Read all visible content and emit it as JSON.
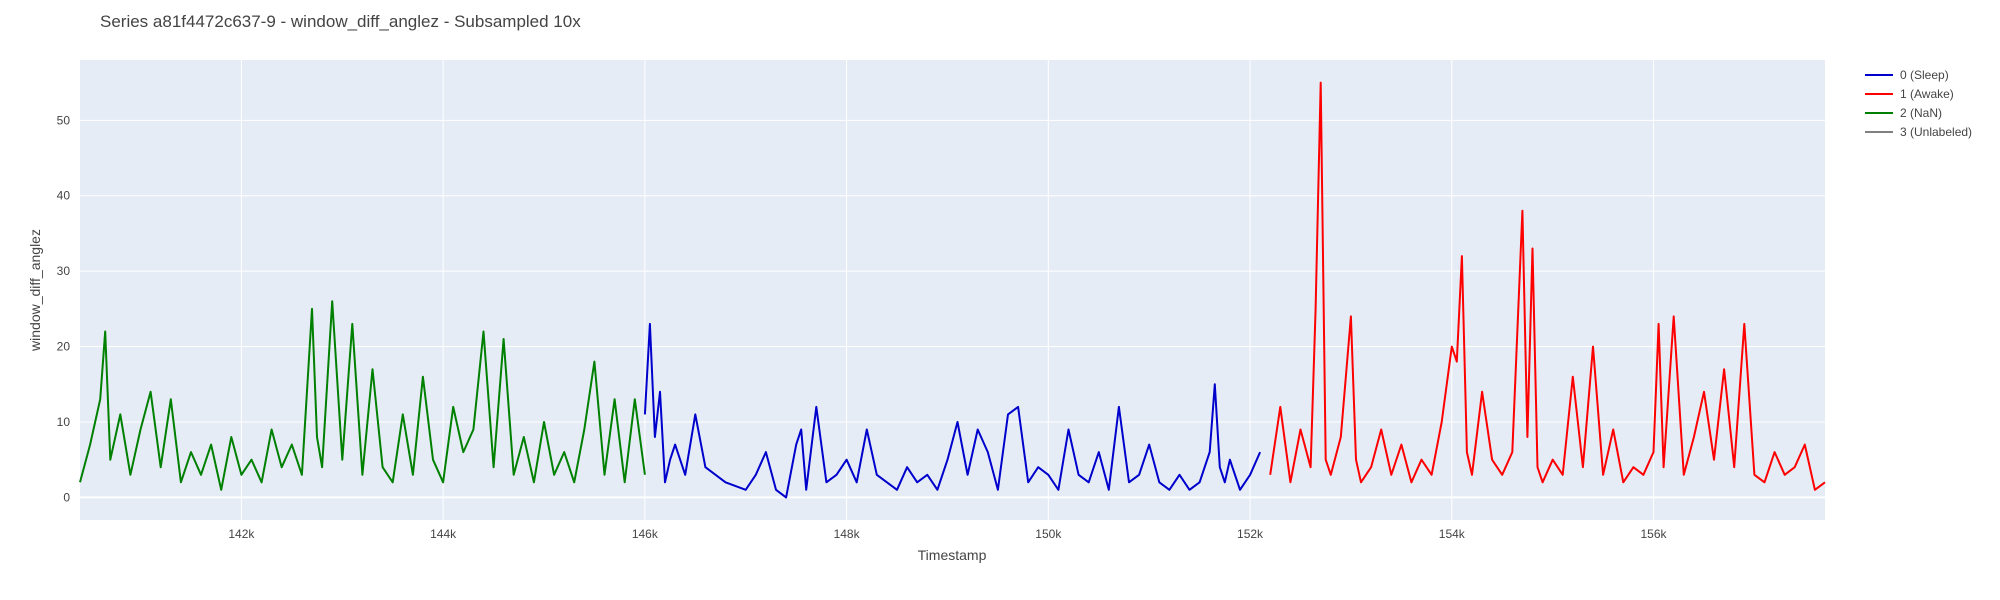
{
  "chart_data": {
    "type": "line",
    "title": "Series a81f4472c637-9 - window_diff_anglez - Subsampled 10x",
    "xlabel": "Timestamp",
    "ylabel": "window_diff_anglez",
    "xlim": [
      140400,
      157700
    ],
    "ylim": [
      -3,
      58
    ],
    "x_ticks": [
      142000,
      144000,
      146000,
      148000,
      150000,
      152000,
      154000,
      156000
    ],
    "x_tick_labels": [
      "142k",
      "144k",
      "146k",
      "148k",
      "150k",
      "152k",
      "154k",
      "156k"
    ],
    "y_ticks": [
      0,
      10,
      20,
      30,
      40,
      50
    ],
    "y_tick_labels": [
      "0",
      "10",
      "20",
      "30",
      "40",
      "50"
    ],
    "grid": true,
    "legend_position": "top-right",
    "colors": {
      "plot_bg": "#e5ecf6",
      "grid": "#ffffff"
    },
    "series": [
      {
        "name": "0 (Sleep)",
        "color": "#0000cc",
        "x": [
          146000,
          146050,
          146100,
          146150,
          146200,
          146250,
          146300,
          146400,
          146500,
          146600,
          146800,
          147000,
          147100,
          147200,
          147300,
          147400,
          147500,
          147550,
          147600,
          147700,
          147800,
          147900,
          148000,
          148100,
          148200,
          148300,
          148400,
          148500,
          148600,
          148700,
          148800,
          148900,
          149000,
          149100,
          149200,
          149300,
          149400,
          149500,
          149600,
          149700,
          149800,
          149900,
          150000,
          150100,
          150200,
          150300,
          150400,
          150500,
          150600,
          150700,
          150800,
          150900,
          151000,
          151100,
          151200,
          151300,
          151400,
          151500,
          151600,
          151650,
          151700,
          151750,
          151800,
          151900,
          152000,
          152100
        ],
        "y": [
          11,
          23,
          8,
          14,
          2,
          5,
          7,
          3,
          11,
          4,
          2,
          1,
          3,
          6,
          1,
          0,
          7,
          9,
          1,
          12,
          2,
          3,
          5,
          2,
          9,
          3,
          2,
          1,
          4,
          2,
          3,
          1,
          5,
          10,
          3,
          9,
          6,
          1,
          11,
          12,
          2,
          4,
          3,
          1,
          9,
          3,
          2,
          6,
          1,
          12,
          2,
          3,
          7,
          2,
          1,
          3,
          1,
          2,
          6,
          15,
          4,
          2,
          5,
          1,
          3,
          6
        ]
      },
      {
        "name": "1 (Awake)",
        "color": "#ff0000",
        "x": [
          152200,
          152300,
          152400,
          152500,
          152600,
          152650,
          152700,
          152750,
          152800,
          152900,
          153000,
          153050,
          153100,
          153200,
          153300,
          153400,
          153500,
          153600,
          153700,
          153800,
          153900,
          154000,
          154050,
          154100,
          154150,
          154200,
          154300,
          154400,
          154500,
          154600,
          154700,
          154750,
          154800,
          154850,
          154900,
          155000,
          155100,
          155200,
          155300,
          155400,
          155500,
          155600,
          155700,
          155800,
          155900,
          156000,
          156050,
          156100,
          156200,
          156300,
          156400,
          156500,
          156600,
          156700,
          156800,
          156900,
          157000,
          157100,
          157200,
          157300,
          157400,
          157500,
          157600,
          157700
        ],
        "y": [
          3,
          12,
          2,
          9,
          4,
          25,
          55,
          5,
          3,
          8,
          24,
          5,
          2,
          4,
          9,
          3,
          7,
          2,
          5,
          3,
          10,
          20,
          18,
          32,
          6,
          3,
          14,
          5,
          3,
          6,
          38,
          8,
          33,
          4,
          2,
          5,
          3,
          16,
          4,
          20,
          3,
          9,
          2,
          4,
          3,
          6,
          23,
          4,
          24,
          3,
          8,
          14,
          5,
          17,
          4,
          23,
          3,
          2,
          6,
          3,
          4,
          7,
          1,
          2
        ]
      },
      {
        "name": "2 (NaN)",
        "color": "#008000",
        "x": [
          140400,
          140500,
          140600,
          140650,
          140700,
          140800,
          140900,
          141000,
          141100,
          141200,
          141300,
          141400,
          141500,
          141600,
          141700,
          141800,
          141900,
          142000,
          142100,
          142200,
          142300,
          142400,
          142500,
          142600,
          142700,
          142750,
          142800,
          142900,
          143000,
          143100,
          143200,
          143300,
          143400,
          143500,
          143600,
          143700,
          143800,
          143900,
          144000,
          144100,
          144200,
          144300,
          144400,
          144500,
          144600,
          144700,
          144800,
          144900,
          145000,
          145100,
          145200,
          145300,
          145400,
          145500,
          145600,
          145700,
          145800,
          145900,
          146000
        ],
        "y": [
          2,
          7,
          13,
          22,
          5,
          11,
          3,
          9,
          14,
          4,
          13,
          2,
          6,
          3,
          7,
          1,
          8,
          3,
          5,
          2,
          9,
          4,
          7,
          3,
          25,
          8,
          4,
          26,
          5,
          23,
          3,
          17,
          4,
          2,
          11,
          3,
          16,
          5,
          2,
          12,
          6,
          9,
          22,
          4,
          21,
          3,
          8,
          2,
          10,
          3,
          6,
          2,
          9,
          18,
          3,
          13,
          2,
          13,
          3
        ]
      },
      {
        "name": "3 (Unlabeled)",
        "color": "#808080",
        "x": [],
        "y": []
      }
    ]
  }
}
